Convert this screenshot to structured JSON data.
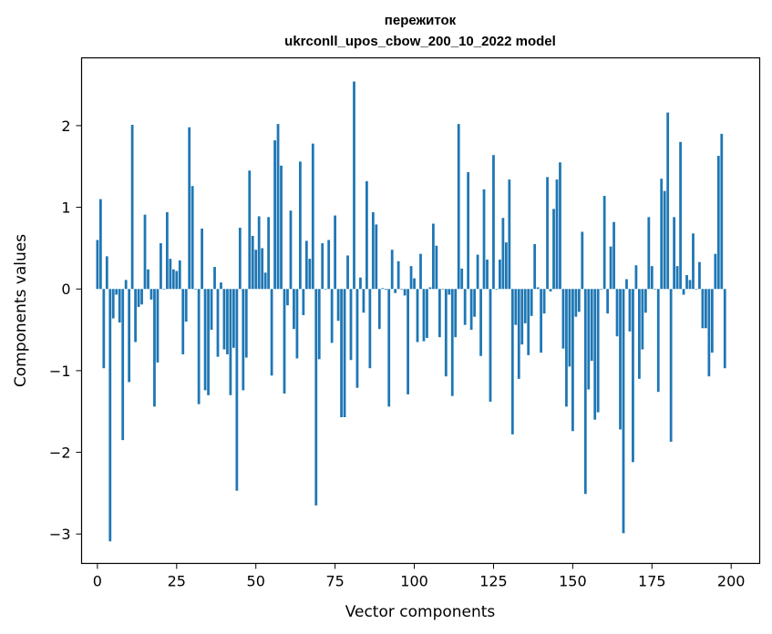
{
  "chart_data": {
    "type": "bar",
    "title": "пережиток",
    "subtitle": "ukrconll_upos_cbow_200_10_2022 model",
    "xlabel": "Vector components",
    "ylabel": "Components values",
    "xlim": [
      -5,
      209
    ],
    "ylim": [
      -3.36,
      2.83
    ],
    "xticks": [
      0,
      25,
      50,
      75,
      100,
      125,
      150,
      175,
      200
    ],
    "yticks": [
      -3,
      -2,
      -1,
      0,
      1,
      2
    ],
    "ytick_labels": [
      "−3",
      "−2",
      "−1",
      "0",
      "1",
      "2"
    ],
    "grid": false,
    "bar_color": "#1f77b4",
    "values": [
      0.6,
      1.1,
      -0.97,
      0.4,
      -3.09,
      -0.36,
      -0.07,
      -0.41,
      -1.85,
      0.11,
      -1.14,
      2.01,
      -0.65,
      -0.22,
      -0.19,
      0.91,
      0.24,
      -0.13,
      -1.44,
      -0.9,
      0.56,
      0.0,
      0.94,
      0.37,
      0.24,
      0.22,
      0.35,
      -0.8,
      -0.4,
      1.98,
      1.26,
      0.0,
      -1.41,
      0.74,
      -1.24,
      -1.3,
      -0.5,
      0.27,
      -0.83,
      0.08,
      -0.74,
      -0.8,
      -1.3,
      -0.72,
      -2.47,
      0.75,
      -1.24,
      -0.84,
      1.45,
      0.65,
      0.48,
      0.89,
      0.5,
      0.2,
      0.88,
      -1.06,
      1.82,
      2.02,
      1.51,
      -1.28,
      -0.2,
      0.96,
      -0.49,
      -0.85,
      1.56,
      -0.32,
      0.59,
      0.37,
      1.78,
      -2.65,
      -0.86,
      0.56,
      0.0,
      0.6,
      -0.66,
      0.9,
      -0.39,
      -1.57,
      -1.57,
      0.41,
      -0.87,
      2.54,
      -1.21,
      0.14,
      -0.29,
      1.32,
      -0.97,
      0.94,
      0.79,
      -0.49,
      0.01,
      -0.01,
      -1.44,
      0.48,
      -0.05,
      0.34,
      0.0,
      -0.08,
      -1.29,
      0.28,
      0.13,
      -0.65,
      0.43,
      -0.64,
      -0.6,
      0.02,
      0.8,
      0.53,
      -0.59,
      0.0,
      -1.07,
      -0.07,
      -1.31,
      -0.59,
      2.02,
      0.25,
      -0.44,
      1.43,
      -0.5,
      -0.34,
      0.42,
      -0.82,
      1.22,
      0.36,
      -1.38,
      1.64,
      0.0,
      0.36,
      0.87,
      0.57,
      1.34,
      -1.78,
      -0.44,
      -1.1,
      -0.68,
      -0.42,
      -0.81,
      -0.33,
      0.55,
      0.02,
      -0.78,
      -0.3,
      1.37,
      -0.03,
      0.98,
      1.34,
      1.55,
      -0.73,
      -1.44,
      -0.95,
      -1.74,
      -0.34,
      -0.28,
      0.7,
      -2.51,
      -1.23,
      -0.88,
      -1.6,
      -1.51,
      0.0,
      1.14,
      -0.3,
      0.52,
      0.82,
      -0.58,
      -1.72,
      -2.99,
      0.12,
      -0.52,
      -2.12,
      0.29,
      -1.1,
      -0.74,
      -0.29,
      0.88,
      0.28,
      0.0,
      -1.26,
      1.35,
      1.2,
      2.16,
      -1.87,
      0.88,
      0.28,
      1.8,
      -0.07,
      0.17,
      0.11,
      0.68,
      0.0,
      0.33,
      -0.48,
      -0.48,
      -1.07,
      -0.78,
      0.43,
      1.63,
      1.9,
      -0.97
    ]
  }
}
